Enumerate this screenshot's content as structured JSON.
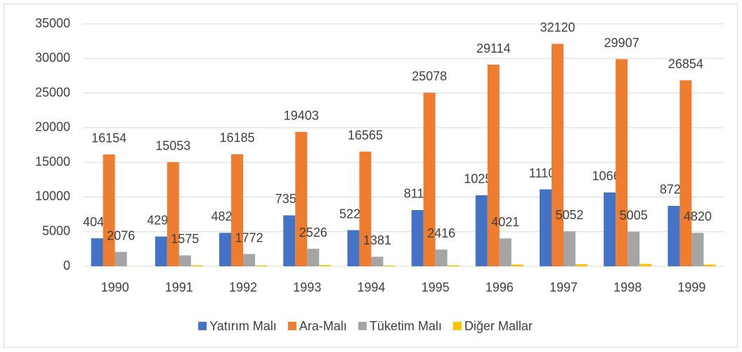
{
  "chart_data": {
    "type": "bar",
    "categories": [
      "1990",
      "1991",
      "1992",
      "1993",
      "1994",
      "1995",
      "1996",
      "1997",
      "1998",
      "1999"
    ],
    "series": [
      {
        "name": "Yatırım Malı",
        "color": "#4472c4",
        "values": [
          4041,
          4296,
          4826,
          7358,
          5220,
          8119,
          10254,
          11108,
          10661,
          8727
        ],
        "labeled": true
      },
      {
        "name": "Ara-Malı",
        "color": "#ed7d31",
        "values": [
          16154,
          15053,
          16185,
          19403,
          16565,
          25078,
          29114,
          32120,
          29907,
          26854
        ],
        "labeled": true
      },
      {
        "name": "Tüketim Malı",
        "color": "#a5a5a5",
        "values": [
          2076,
          1575,
          1772,
          2526,
          1381,
          2416,
          4021,
          5052,
          5005,
          4820
        ],
        "labeled": true
      },
      {
        "name": "Diğer Mallar",
        "color": "#ffc000",
        "values": [
          20,
          150,
          130,
          170,
          120,
          150,
          250,
          300,
          350,
          250
        ],
        "labeled": false
      }
    ],
    "ylim": [
      0,
      35000
    ],
    "yticks": [
      0,
      5000,
      10000,
      15000,
      20000,
      25000,
      30000,
      35000
    ],
    "grid": true,
    "legend": "bottom"
  }
}
